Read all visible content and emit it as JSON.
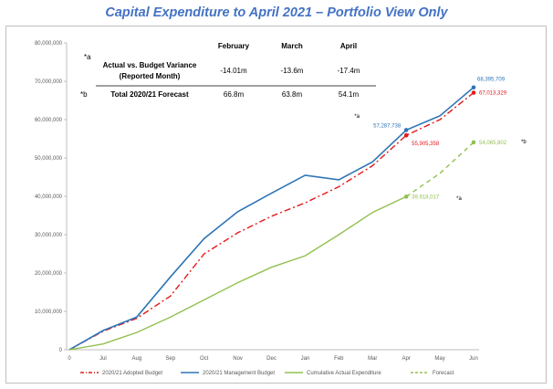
{
  "chart_data": {
    "type": "line",
    "title": "Capital Expenditure to April 2021 – Portfolio View Only",
    "categories": [
      "0",
      "Jul",
      "Aug",
      "Sep",
      "Oct",
      "Nov",
      "Dec",
      "Jan",
      "Feb",
      "Mar",
      "Apr",
      "May",
      "Jun"
    ],
    "ylim": [
      0,
      80000000
    ],
    "yticks": [
      "0",
      "10,000,000",
      "20,000,000",
      "30,000,000",
      "40,000,000",
      "50,000,000",
      "60,000,000",
      "70,000,000",
      "80,000,000"
    ],
    "grid": false,
    "legend_position": "bottom",
    "series": [
      {
        "name": "2020/21 Adopted Budget",
        "color": "#e31a1c",
        "style": "dashdot",
        "values": [
          0,
          4800000,
          8200000,
          14000000,
          25000000,
          30500000,
          34800000,
          38300000,
          42500000,
          48000000,
          55905358,
          60000000,
          67013329
        ]
      },
      {
        "name": "2020/21 Management Budget",
        "color": "#2e75b6",
        "style": "solid",
        "values": [
          0,
          5000000,
          8500000,
          19000000,
          29000000,
          36000000,
          40800000,
          45500000,
          44300000,
          49000000,
          57287738,
          61000000,
          68395709
        ]
      },
      {
        "name": "Cumulative Actual Expenditure",
        "color": "#92c050",
        "style": "solid",
        "values": [
          0,
          1500000,
          4500000,
          8500000,
          13000000,
          17500000,
          21500000,
          24500000,
          30000000,
          35800000,
          39918017,
          null,
          null
        ]
      },
      {
        "name": "Forecast",
        "color": "#92c050",
        "style": "dashed",
        "values": [
          null,
          null,
          null,
          null,
          null,
          null,
          null,
          null,
          null,
          null,
          39918017,
          46000000,
          54065802
        ]
      }
    ],
    "point_labels": [
      {
        "series": 1,
        "index": 12,
        "text": "68,395,709",
        "color": "#2e75b6",
        "pos": "above"
      },
      {
        "series": 0,
        "index": 12,
        "text": "67,013,329",
        "color": "#e31a1c",
        "pos": "right"
      },
      {
        "series": 1,
        "index": 10,
        "text": "57,287,738",
        "color": "#2e75b6",
        "pos": "left"
      },
      {
        "series": 0,
        "index": 10,
        "text": "55,905,358",
        "color": "#e31a1c",
        "pos": "below-right"
      },
      {
        "series": 3,
        "index": 12,
        "text": "54,065,802",
        "color": "#92c050",
        "pos": "right"
      },
      {
        "series": 2,
        "index": 10,
        "text": "39,918,017",
        "color": "#92c050",
        "pos": "right"
      }
    ],
    "annotations": [
      {
        "text": "*a",
        "anchor": "apr-upper"
      },
      {
        "text": "*a",
        "anchor": "apr-lower"
      },
      {
        "text": "*b",
        "anchor": "jun-forecast"
      }
    ],
    "table": {
      "columns": [
        "February",
        "March",
        "April"
      ],
      "rows": [
        {
          "marker": "*a",
          "label": "Actual vs. Budget Variance",
          "sublabel": "(Reported Month)",
          "values": [
            "-14.01m",
            "-13.6m",
            "-17.4m"
          ]
        },
        {
          "marker": "*b",
          "label": "Total 2020/21 Forecast",
          "sublabel": "",
          "values": [
            "66.8m",
            "63.8m",
            "54.1m"
          ]
        }
      ]
    }
  }
}
